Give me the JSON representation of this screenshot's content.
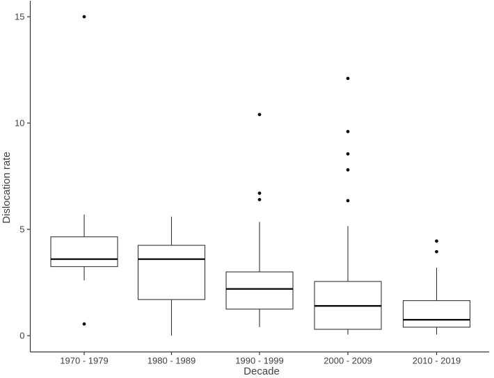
{
  "chart_data": {
    "type": "boxplot",
    "title": "",
    "xlabel": "Decade",
    "ylabel": "Dislocation rate",
    "categories": [
      "1970 - 1979",
      "1980 - 1989",
      "1990 - 1999",
      "2000 - 2009",
      "2010 - 2019"
    ],
    "y_ticks": [
      "0",
      "5",
      "10",
      "15"
    ],
    "ylim": [
      0,
      15.8
    ],
    "grid": false,
    "legend": "none",
    "boxes": [
      {
        "category": "1970 - 1979",
        "whisker_low": 2.6,
        "q1": 3.25,
        "median": 3.6,
        "q3": 4.65,
        "whisker_high": 5.7,
        "outliers": [
          15.0,
          0.55
        ]
      },
      {
        "category": "1980 - 1989",
        "whisker_low": 0.0,
        "q1": 1.7,
        "median": 3.6,
        "q3": 4.25,
        "whisker_high": 5.6,
        "outliers": []
      },
      {
        "category": "1990 - 1999",
        "whisker_low": 0.4,
        "q1": 1.25,
        "median": 2.2,
        "q3": 3.0,
        "whisker_high": 5.35,
        "outliers": [
          10.4,
          6.7,
          6.4
        ]
      },
      {
        "category": "2000 - 2009",
        "whisker_low": 0.05,
        "q1": 0.3,
        "median": 1.4,
        "q3": 2.55,
        "whisker_high": 5.15,
        "outliers": [
          12.1,
          9.6,
          8.55,
          7.8,
          6.35
        ]
      },
      {
        "category": "2010 - 2019",
        "whisker_low": 0.05,
        "q1": 0.4,
        "median": 0.75,
        "q3": 1.65,
        "whisker_high": 3.2,
        "outliers": [
          4.45,
          3.95
        ]
      }
    ],
    "colors": {
      "axis": "#333333",
      "text": "#404040",
      "box_border": "#333333",
      "box_fill": "#ffffff",
      "median": "#111111",
      "outlier": "#111111",
      "background": "#ffffff"
    }
  }
}
